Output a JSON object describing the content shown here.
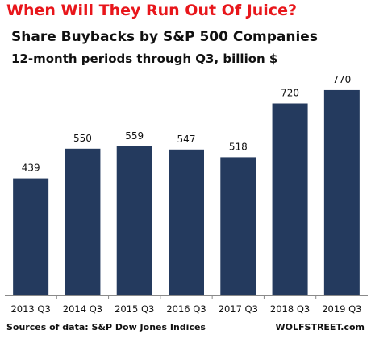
{
  "header": {
    "headline": "When Will They Run Out Of Juice?",
    "title": "Share Buybacks by S&P 500 Companies",
    "subtitle": "12-month periods through Q3, billion $"
  },
  "footer": {
    "source": "Sources of data: S&P Dow Jones Indices",
    "brand": "WOLFSTREET.com"
  },
  "colors": {
    "bar": "#243a5e",
    "headline": "#e8161b",
    "axis": "#8a8a8a"
  },
  "chart_data": {
    "type": "bar",
    "title": "Share Buybacks by S&P 500 Companies",
    "subtitle": "12-month periods through Q3, billion $",
    "xlabel": "",
    "ylabel": "",
    "categories": [
      "2013 Q3",
      "2014 Q3",
      "2015 Q3",
      "2016 Q3",
      "2017 Q3",
      "2018 Q3",
      "2019 Q3"
    ],
    "values": [
      439,
      550,
      559,
      547,
      518,
      720,
      770
    ],
    "ylim": [
      0,
      800
    ],
    "grid": false,
    "data_labels": true
  }
}
